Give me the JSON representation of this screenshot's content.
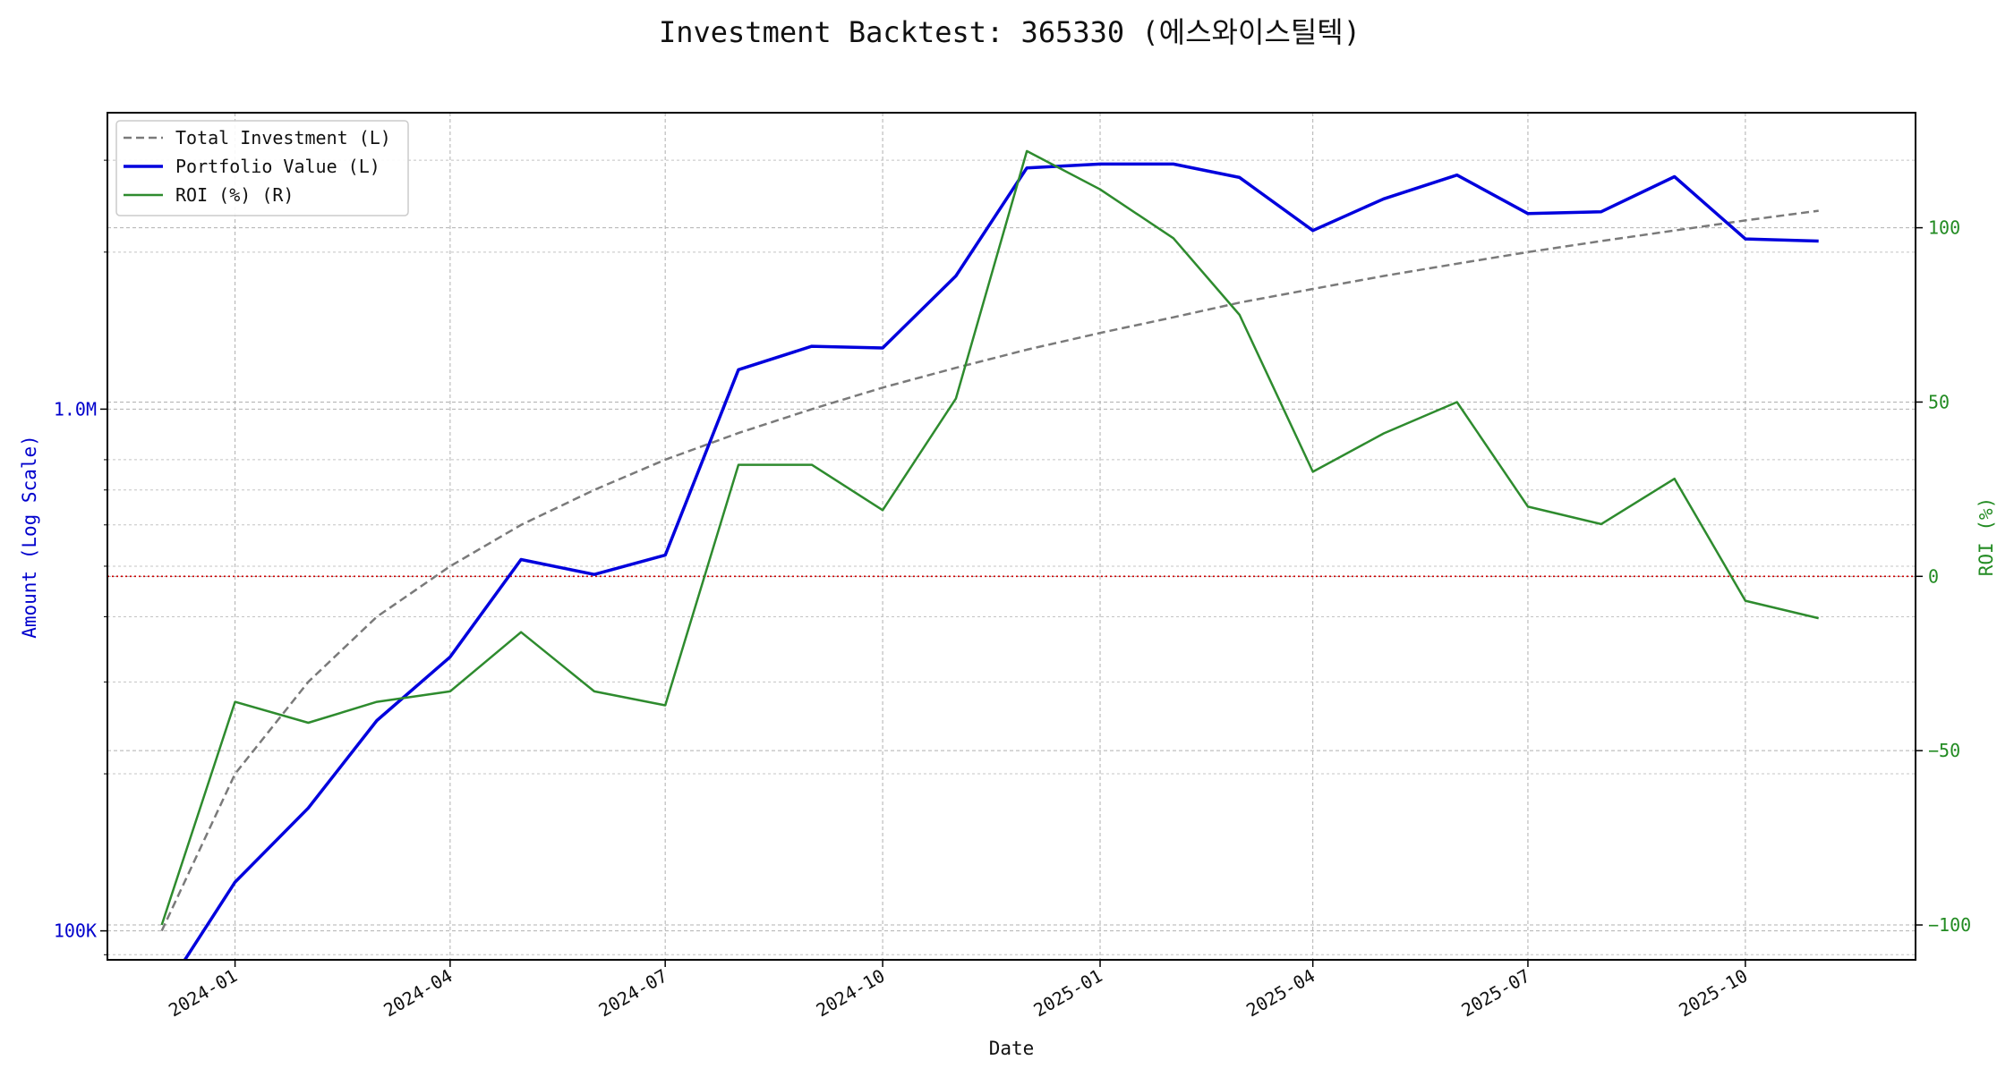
{
  "chart_data": {
    "type": "line",
    "title": "Investment Backtest: 365330 (에스와이스틸텍)",
    "xlabel": "Date",
    "ylabel_left": "Amount (Log Scale)",
    "ylabel_right": "ROI (%)",
    "left_axis": {
      "scale": "log",
      "range": [
        88000,
        3700000
      ],
      "tick_labels": [
        {
          "value": 100000,
          "label": "100K"
        },
        {
          "value": 1000000,
          "label": "1.0M"
        }
      ],
      "minor_ticks": [
        90000,
        200000,
        300000,
        400000,
        500000,
        600000,
        700000,
        800000,
        2000000,
        3000000
      ]
    },
    "right_axis": {
      "range": [
        -110,
        133
      ],
      "tick_labels": [
        {
          "value": -100,
          "label": "−100"
        },
        {
          "value": -50,
          "label": "−50"
        },
        {
          "value": 0,
          "label": "0"
        },
        {
          "value": 50,
          "label": "50"
        },
        {
          "value": 100,
          "label": "100"
        }
      ]
    },
    "x_axis": {
      "range": [
        "2023-11-08",
        "2025-12-12"
      ],
      "tick_labels": [
        {
          "date": "2024-01-01",
          "label": "2024-01"
        },
        {
          "date": "2024-04-01",
          "label": "2024-04"
        },
        {
          "date": "2024-07-01",
          "label": "2024-07"
        },
        {
          "date": "2024-10-01",
          "label": "2024-10"
        },
        {
          "date": "2025-01-01",
          "label": "2025-01"
        },
        {
          "date": "2025-04-01",
          "label": "2025-04"
        },
        {
          "date": "2025-07-01",
          "label": "2025-07"
        },
        {
          "date": "2025-10-01",
          "label": "2025-10"
        }
      ]
    },
    "dates": [
      "2023-12-01",
      "2024-01-01",
      "2024-02-01",
      "2024-03-01",
      "2024-04-01",
      "2024-05-01",
      "2024-06-01",
      "2024-07-01",
      "2024-08-01",
      "2024-09-01",
      "2024-10-01",
      "2024-11-01",
      "2024-12-01",
      "2025-01-01",
      "2025-02-01",
      "2025-03-01",
      "2025-04-01",
      "2025-05-01",
      "2025-06-01",
      "2025-07-01",
      "2025-08-01",
      "2025-09-01",
      "2025-10-01",
      "2025-11-01"
    ],
    "series": [
      {
        "name": "Total Investment (L)",
        "axis": "left",
        "color": "#7a7a7a",
        "style": "dashed",
        "values": [
          100000,
          200000,
          300000,
          400000,
          500000,
          600000,
          700000,
          800000,
          900000,
          1000000,
          1100000,
          1200000,
          1300000,
          1400000,
          1500000,
          1600000,
          1700000,
          1800000,
          1900000,
          2000000,
          2100000,
          2200000,
          2300000,
          2400000
        ]
      },
      {
        "name": "Portfolio Value (L)",
        "axis": "left",
        "color": "#0000dd",
        "style": "solid",
        "values": [
          0,
          124000,
          172000,
          253000,
          335000,
          515000,
          482000,
          525000,
          1190000,
          1320000,
          1310000,
          1800000,
          2900000,
          2950000,
          2950000,
          2780000,
          2200000,
          2530000,
          2810000,
          2370000,
          2390000,
          2790000,
          2120000,
          2100000
        ]
      },
      {
        "name": "ROI (%) (R)",
        "axis": "right",
        "color": "#2e8b2e",
        "style": "solid",
        "values": [
          -100,
          -36,
          -42,
          -36,
          -33,
          -16,
          -33,
          -37,
          32,
          32,
          19,
          51,
          122,
          111,
          97,
          75,
          30,
          41,
          50,
          20,
          15,
          28,
          -7,
          -12
        ]
      }
    ],
    "reference_line": {
      "axis": "right",
      "value": 0,
      "color": "#cc0000",
      "style": "dotted"
    },
    "grid": true,
    "legend_position": "upper-left"
  }
}
